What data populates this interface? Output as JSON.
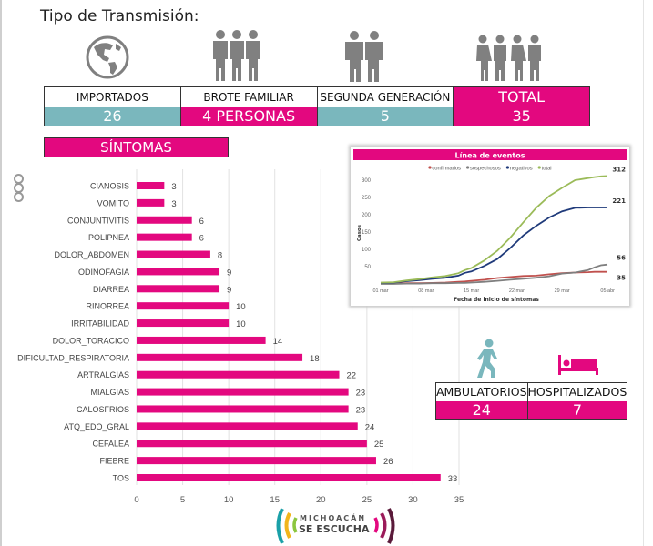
{
  "header": {
    "title": "Tipo de Transmisión:"
  },
  "transmission": {
    "columns": [
      {
        "label": "IMPORTADOS",
        "value": "26",
        "icon": "globe-icon",
        "color": "#7ab7bd"
      },
      {
        "label": "BROTE FAMILIAR",
        "value": "4 PERSONAS",
        "icon": "family-group-icon",
        "color": "#e3087f"
      },
      {
        "label": "SEGUNDA GENERACIÓN",
        "value": "5",
        "icon": "two-people-icon",
        "color": "#7ab7bd"
      },
      {
        "label": "TOTAL",
        "value": "35",
        "icon": "group-of-four-icon",
        "color": "#e3087f"
      }
    ]
  },
  "symptoms_header": "SÍNTOMAS",
  "care": {
    "columns": [
      {
        "label": "AMBULATORIOS",
        "value": "24",
        "icon": "walking-person-icon"
      },
      {
        "label": "HOSPITALIZADOS",
        "value": "7",
        "icon": "hospital-bed-icon"
      }
    ]
  },
  "logo": {
    "line1": "MICHOACÁN",
    "line2": "SE ESCUCHA"
  },
  "colors": {
    "accent": "#e3087f",
    "teal": "#7ab7bd",
    "icon_gray": "#808080"
  },
  "chart_data": [
    {
      "type": "bar",
      "orientation": "horizontal",
      "title": "SÍNTOMAS",
      "categories": [
        "CIANOSIS",
        "VOMITO",
        "CONJUNTIVITIS",
        "POLIPNEA",
        "DOLOR_ABDOMEN",
        "ODINOFAGIA",
        "DIARREA",
        "RINORREA",
        "IRRITABILIDAD",
        "DOLOR_TORACICO",
        "DIFICULTAD_RESPIRATORIA",
        "ARTRALGIAS",
        "MIALGIAS",
        "CALOSFRIOS",
        "ATQ_EDO_GRAL",
        "CEFALEA",
        "FIEBRE",
        "TOS"
      ],
      "values": [
        3,
        3,
        6,
        6,
        8,
        9,
        9,
        10,
        10,
        14,
        18,
        22,
        23,
        23,
        24,
        25,
        26,
        33
      ],
      "xlim": [
        0,
        35
      ],
      "xticks": [
        0,
        5,
        10,
        15,
        20,
        25,
        30,
        35
      ],
      "grid": true,
      "bar_color": "#e3087f"
    },
    {
      "type": "line",
      "title": "Línea de eventos",
      "xlabel": "Fecha de inicio de síntomas",
      "ylabel": "Casos",
      "ylim": [
        0,
        320
      ],
      "yticks": [
        50,
        100,
        150,
        200,
        250,
        300
      ],
      "xticks": [
        "01 mar",
        "08 mar",
        "15 mar",
        "22 mar",
        "29 mar",
        "05 abr"
      ],
      "legend": "top",
      "x": [
        0,
        2,
        4,
        6,
        8,
        10,
        12,
        13,
        14,
        16,
        18,
        20,
        22,
        24,
        26,
        28,
        30,
        32,
        33,
        34,
        35
      ],
      "series": [
        {
          "name": "confirmados",
          "color": "#c0504d",
          "end_label": "35",
          "values": [
            1,
            1,
            2,
            2,
            3,
            4,
            6,
            7,
            9,
            12,
            17,
            20,
            23,
            24,
            28,
            31,
            33,
            34,
            35,
            35,
            35
          ]
        },
        {
          "name": "sospechosos",
          "color": "#7f7f7f",
          "end_label": "56",
          "values": [
            0,
            0,
            1,
            1,
            2,
            2,
            3,
            3,
            4,
            6,
            9,
            12,
            15,
            18,
            22,
            30,
            33,
            40,
            48,
            54,
            56
          ]
        },
        {
          "name": "negativos",
          "color": "#1f3a7a",
          "end_label": "221",
          "values": [
            3,
            4,
            8,
            11,
            15,
            18,
            24,
            32,
            36,
            52,
            72,
            104,
            140,
            168,
            192,
            210,
            220,
            221,
            221,
            221,
            221
          ]
        },
        {
          "name": "total",
          "color": "#9bbb59",
          "end_label": "312",
          "values": [
            4,
            5,
            10,
            14,
            19,
            23,
            31,
            40,
            46,
            68,
            96,
            134,
            178,
            220,
            254,
            278,
            300,
            306,
            309,
            311,
            312
          ]
        }
      ]
    }
  ]
}
